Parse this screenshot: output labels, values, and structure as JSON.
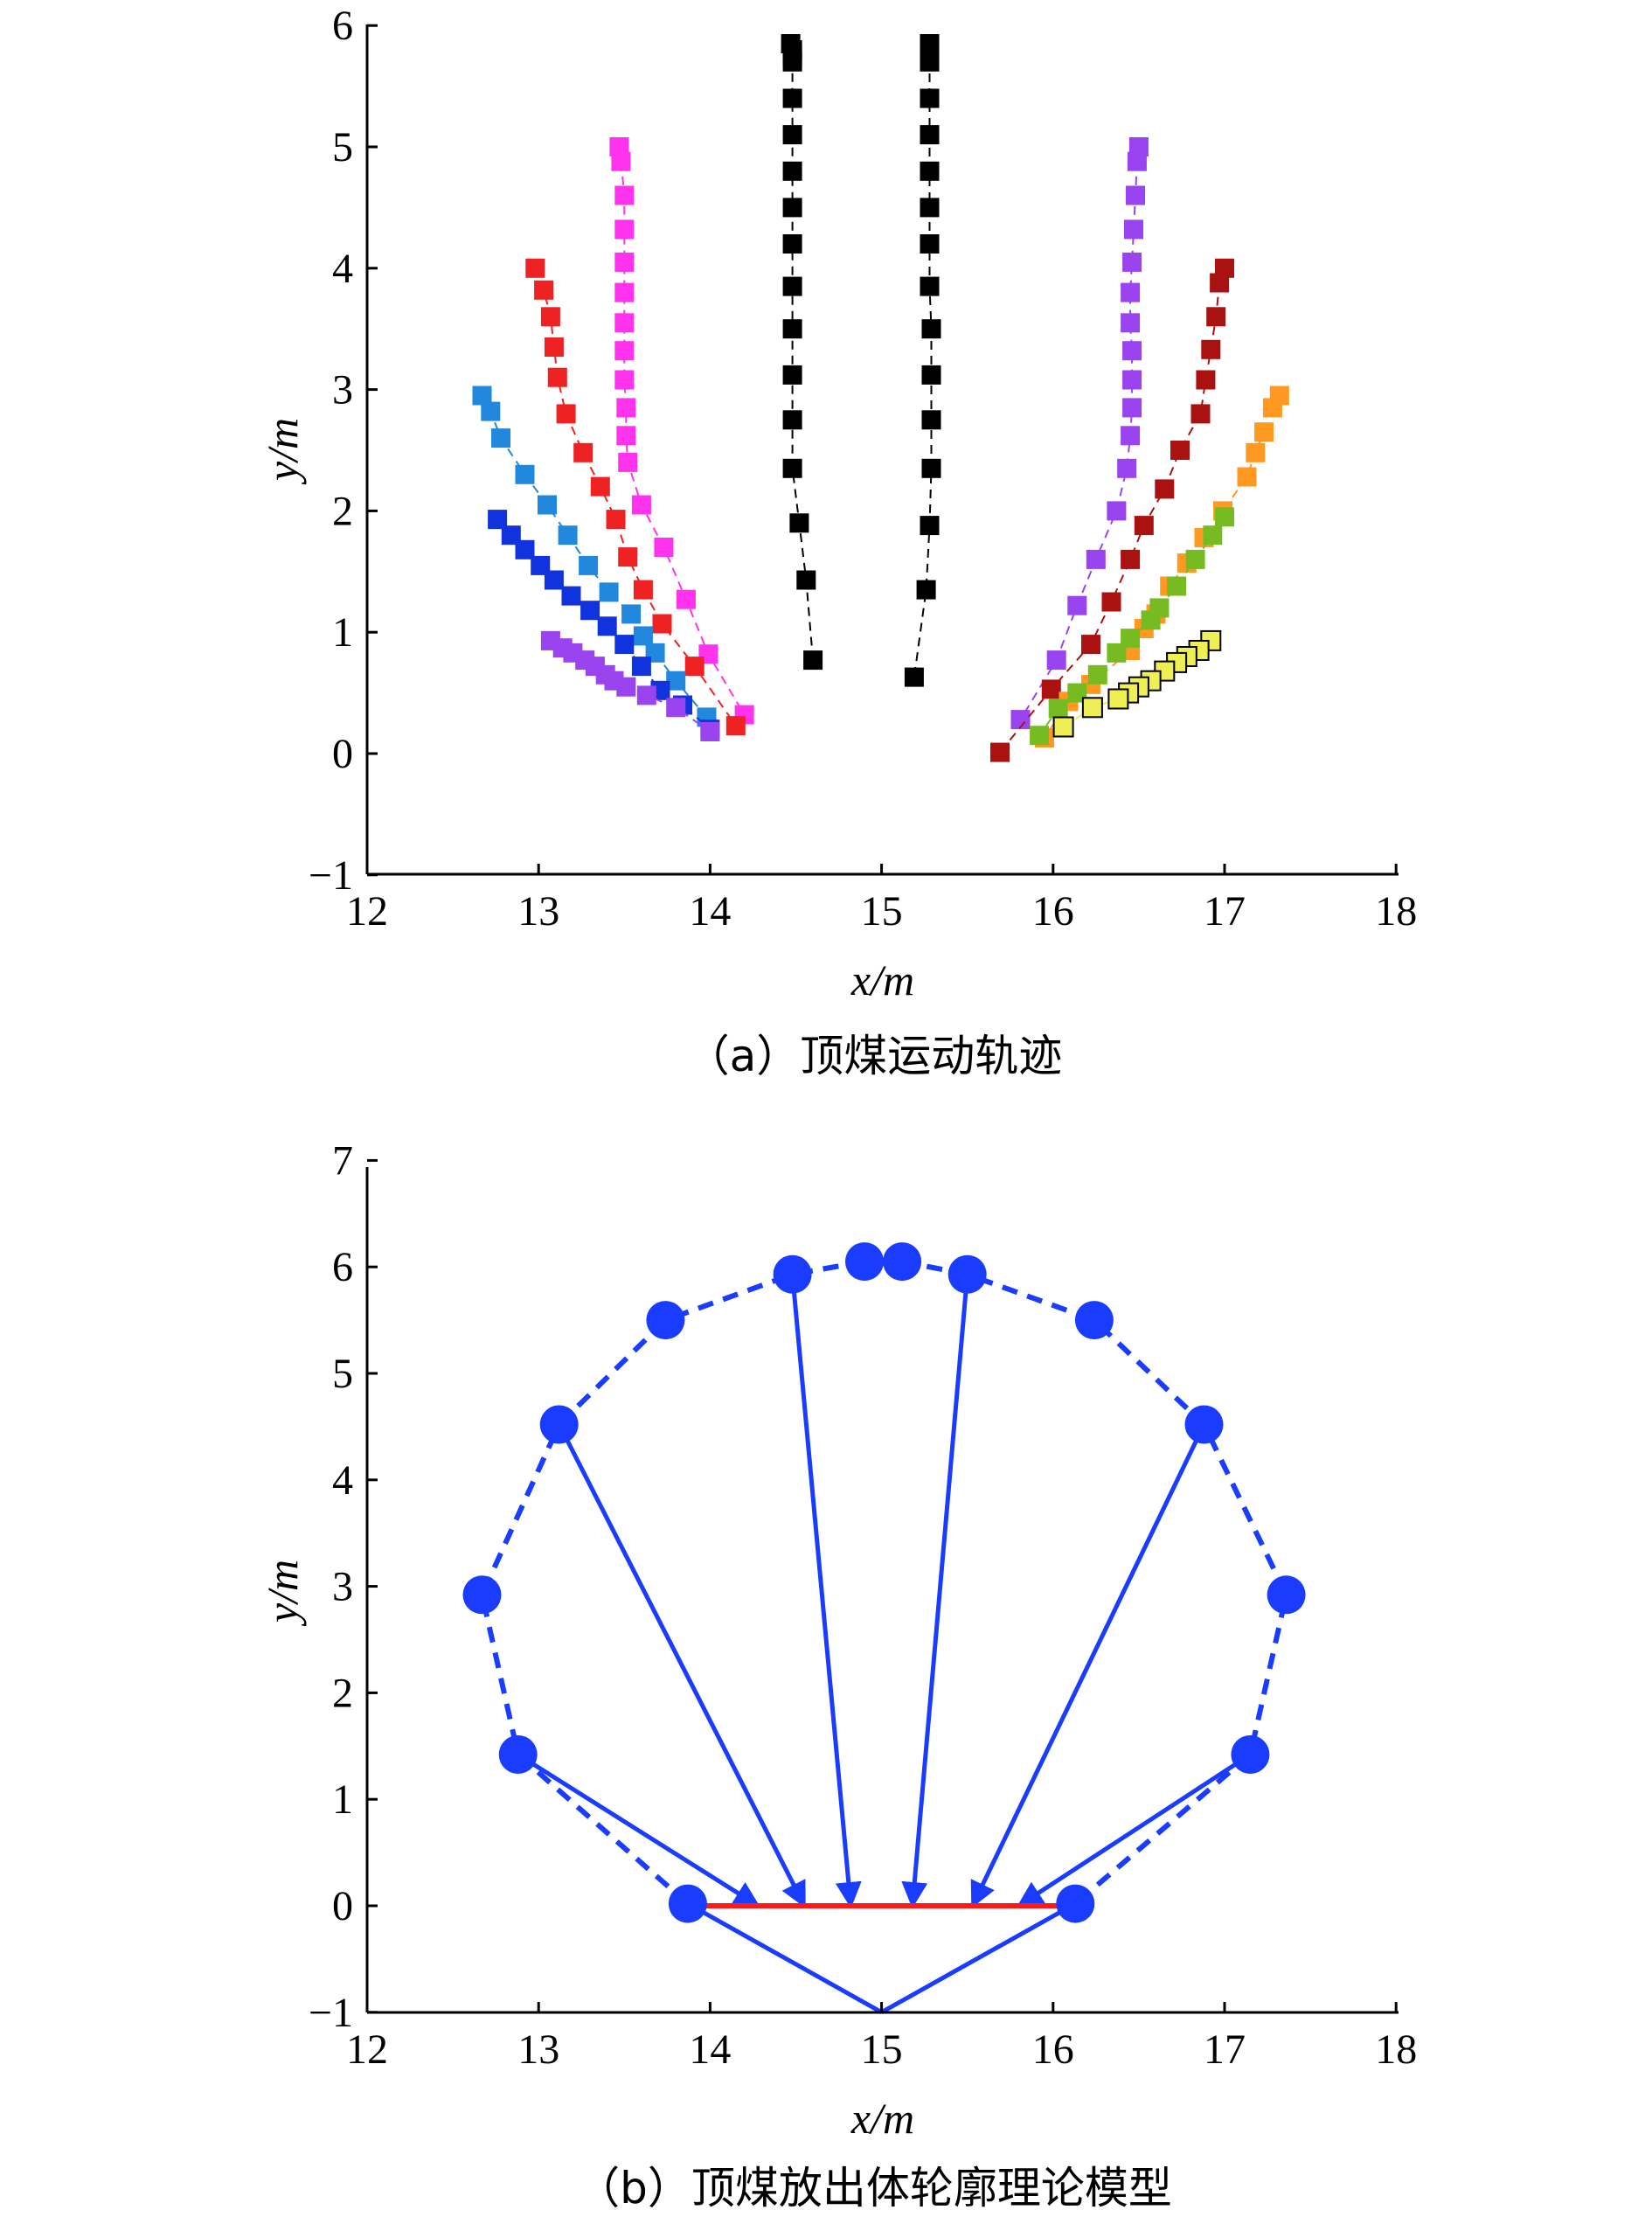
{
  "chart_data": [
    {
      "type": "scatter",
      "caption": "（a）顶煤运动轨迹",
      "xlabel": "x/m",
      "ylabel": "y/m",
      "xlim": [
        12,
        18
      ],
      "ylim": [
        -1,
        6
      ],
      "xticks": [
        "12",
        "13",
        "14",
        "15",
        "16",
        "17",
        "18"
      ],
      "yticks": [
        "−1",
        "0",
        "1",
        "2",
        "3",
        "4",
        "5",
        "6"
      ],
      "series": [
        {
          "color": "#000000",
          "line": [
            [
              14.15,
              0
            ],
            [
              14.0,
              0.2
            ]
          ],
          "points": [
            [
              14.47,
              5.85
            ],
            [
              14.48,
              5.8
            ],
            [
              14.48,
              5.75
            ],
            [
              14.48,
              5.7
            ],
            [
              14.48,
              5.4
            ],
            [
              14.48,
              5.1
            ],
            [
              14.48,
              4.8
            ],
            [
              14.48,
              4.5
            ],
            [
              14.48,
              4.2
            ],
            [
              14.48,
              3.85
            ],
            [
              14.48,
              3.5
            ],
            [
              14.48,
              3.12
            ],
            [
              14.48,
              2.75
            ],
            [
              14.48,
              2.35
            ],
            [
              14.52,
              1.9
            ],
            [
              14.56,
              1.43
            ],
            [
              14.6,
              0.77
            ]
          ]
        },
        {
          "color": "#000000",
          "points": [
            [
              15.28,
              5.85
            ],
            [
              15.28,
              5.8
            ],
            [
              15.28,
              5.75
            ],
            [
              15.28,
              5.7
            ],
            [
              15.28,
              5.4
            ],
            [
              15.28,
              5.1
            ],
            [
              15.28,
              4.8
            ],
            [
              15.28,
              4.5
            ],
            [
              15.28,
              4.2
            ],
            [
              15.28,
              3.85
            ],
            [
              15.29,
              3.5
            ],
            [
              15.29,
              3.12
            ],
            [
              15.29,
              2.75
            ],
            [
              15.29,
              2.35
            ],
            [
              15.28,
              1.88
            ],
            [
              15.26,
              1.35
            ],
            [
              15.19,
              0.63
            ]
          ]
        },
        {
          "color": "#ff33ee",
          "points": [
            [
              13.47,
              5.0
            ],
            [
              13.48,
              4.88
            ],
            [
              13.5,
              4.6
            ],
            [
              13.5,
              4.32
            ],
            [
              13.5,
              4.05
            ],
            [
              13.5,
              3.8
            ],
            [
              13.5,
              3.55
            ],
            [
              13.5,
              3.32
            ],
            [
              13.5,
              3.08
            ],
            [
              13.51,
              2.85
            ],
            [
              13.51,
              2.62
            ],
            [
              13.52,
              2.4
            ],
            [
              13.6,
              2.05
            ],
            [
              13.73,
              1.7
            ],
            [
              13.86,
              1.27
            ],
            [
              13.99,
              0.82
            ],
            [
              14.2,
              0.32
            ]
          ]
        },
        {
          "color": "#ee2222",
          "points": [
            [
              12.98,
              4.0
            ],
            [
              13.03,
              3.82
            ],
            [
              13.07,
              3.6
            ],
            [
              13.09,
              3.35
            ],
            [
              13.11,
              3.1
            ],
            [
              13.16,
              2.8
            ],
            [
              13.26,
              2.48
            ],
            [
              13.36,
              2.2
            ],
            [
              13.45,
              1.93
            ],
            [
              13.52,
              1.62
            ],
            [
              13.61,
              1.35
            ],
            [
              13.72,
              1.07
            ],
            [
              13.91,
              0.72
            ],
            [
              14.15,
              0.23
            ]
          ]
        },
        {
          "color": "#2288dd",
          "points": [
            [
              12.67,
              2.95
            ],
            [
              12.72,
              2.82
            ],
            [
              12.78,
              2.6
            ],
            [
              12.92,
              2.3
            ],
            [
              13.05,
              2.05
            ],
            [
              13.17,
              1.8
            ],
            [
              13.29,
              1.55
            ],
            [
              13.41,
              1.33
            ],
            [
              13.54,
              1.15
            ],
            [
              13.61,
              0.97
            ],
            [
              13.68,
              0.83
            ],
            [
              13.8,
              0.6
            ],
            [
              13.98,
              0.3
            ]
          ]
        },
        {
          "color": "#1133dd",
          "points": [
            [
              12.76,
              1.93
            ],
            [
              12.84,
              1.8
            ],
            [
              12.92,
              1.68
            ],
            [
              13.01,
              1.55
            ],
            [
              13.09,
              1.43
            ],
            [
              13.19,
              1.3
            ],
            [
              13.3,
              1.18
            ],
            [
              13.4,
              1.05
            ],
            [
              13.5,
              0.9
            ],
            [
              13.6,
              0.72
            ],
            [
              13.71,
              0.52
            ],
            [
              13.84,
              0.4
            ],
            [
              14.0,
              0.2
            ]
          ]
        },
        {
          "color": "#9944ee",
          "points": [
            [
              13.07,
              0.93
            ],
            [
              13.14,
              0.87
            ],
            [
              13.2,
              0.83
            ],
            [
              13.27,
              0.77
            ],
            [
              13.33,
              0.72
            ],
            [
              13.39,
              0.65
            ],
            [
              13.44,
              0.6
            ],
            [
              13.51,
              0.55
            ],
            [
              13.63,
              0.48
            ],
            [
              13.8,
              0.38
            ],
            [
              14.0,
              0.18
            ]
          ]
        },
        {
          "color": "#9944ee",
          "points": [
            [
              16.5,
              5.0
            ],
            [
              16.49,
              4.88
            ],
            [
              16.48,
              4.6
            ],
            [
              16.47,
              4.32
            ],
            [
              16.46,
              4.05
            ],
            [
              16.45,
              3.8
            ],
            [
              16.45,
              3.55
            ],
            [
              16.46,
              3.32
            ],
            [
              16.46,
              3.08
            ],
            [
              16.46,
              2.85
            ],
            [
              16.45,
              2.62
            ],
            [
              16.43,
              2.35
            ],
            [
              16.37,
              2.0
            ],
            [
              16.25,
              1.6
            ],
            [
              16.14,
              1.22
            ],
            [
              16.02,
              0.77
            ],
            [
              15.81,
              0.28
            ]
          ]
        },
        {
          "color": "#aa1111",
          "points": [
            [
              17.0,
              4.0
            ],
            [
              16.97,
              3.88
            ],
            [
              16.95,
              3.6
            ],
            [
              16.92,
              3.33
            ],
            [
              16.89,
              3.08
            ],
            [
              16.86,
              2.8
            ],
            [
              16.74,
              2.5
            ],
            [
              16.65,
              2.18
            ],
            [
              16.53,
              1.88
            ],
            [
              16.45,
              1.6
            ],
            [
              16.34,
              1.25
            ],
            [
              16.22,
              0.9
            ],
            [
              15.99,
              0.53
            ],
            [
              15.69,
              0.01
            ]
          ]
        },
        {
          "color": "#ff9922",
          "points": [
            [
              17.32,
              2.95
            ],
            [
              17.28,
              2.85
            ],
            [
              17.23,
              2.65
            ],
            [
              17.18,
              2.48
            ],
            [
              17.13,
              2.28
            ],
            [
              16.99,
              2.0
            ],
            [
              16.88,
              1.78
            ],
            [
              16.78,
              1.57
            ],
            [
              16.68,
              1.38
            ],
            [
              16.6,
              1.15
            ],
            [
              16.53,
              1.03
            ],
            [
              16.45,
              0.85
            ],
            [
              16.22,
              0.57
            ],
            [
              16.09,
              0.43
            ],
            [
              15.95,
              0.13
            ]
          ]
        },
        {
          "color": "#77bb22",
          "points": [
            [
              17.0,
              1.95
            ],
            [
              16.93,
              1.8
            ],
            [
              16.83,
              1.6
            ],
            [
              16.72,
              1.38
            ],
            [
              16.62,
              1.2
            ],
            [
              16.57,
              1.1
            ],
            [
              16.45,
              0.95
            ],
            [
              16.37,
              0.83
            ],
            [
              16.26,
              0.65
            ],
            [
              16.14,
              0.5
            ],
            [
              16.03,
              0.37
            ],
            [
              15.92,
              0.15
            ]
          ]
        },
        {
          "color": "#eeee55",
          "points": [
            [
              16.92,
              0.93
            ],
            [
              16.85,
              0.85
            ],
            [
              16.78,
              0.8
            ],
            [
              16.72,
              0.75
            ],
            [
              16.65,
              0.68
            ],
            [
              16.57,
              0.6
            ],
            [
              16.5,
              0.55
            ],
            [
              16.44,
              0.5
            ],
            [
              16.38,
              0.45
            ],
            [
              16.23,
              0.38
            ],
            [
              16.06,
              0.22
            ]
          ]
        }
      ]
    },
    {
      "type": "line",
      "caption": "（b）顶煤放出体轮廓理论模型",
      "xlabel": "x/m",
      "ylabel": "y/m",
      "xlim": [
        12,
        18
      ],
      "ylim": [
        -1,
        7
      ],
      "xticks": [
        "12",
        "13",
        "14",
        "15",
        "16",
        "17",
        "18"
      ],
      "yticks": [
        "−1",
        "0",
        "1",
        "2",
        "3",
        "4",
        "5",
        "6",
        "7"
      ],
      "contour_points": [
        [
          13.87,
          0.02
        ],
        [
          12.88,
          1.42
        ],
        [
          12.67,
          2.92
        ],
        [
          13.12,
          4.52
        ],
        [
          13.74,
          5.5
        ],
        [
          14.48,
          5.93
        ],
        [
          14.9,
          6.05
        ],
        [
          15.12,
          6.05
        ],
        [
          15.5,
          5.93
        ],
        [
          16.24,
          5.5
        ],
        [
          16.88,
          4.52
        ],
        [
          17.36,
          2.92
        ],
        [
          17.15,
          1.42
        ],
        [
          16.13,
          0.02
        ]
      ],
      "arrows": [
        [
          [
            12.88,
            1.42
          ],
          [
            14.28,
            0.0
          ]
        ],
        [
          [
            13.12,
            4.52
          ],
          [
            14.55,
            0.0
          ]
        ],
        [
          [
            14.48,
            5.93
          ],
          [
            14.82,
            0.0
          ]
        ],
        [
          [
            15.5,
            5.93
          ],
          [
            15.18,
            0.0
          ]
        ],
        [
          [
            16.88,
            4.52
          ],
          [
            15.53,
            0.0
          ]
        ],
        [
          [
            17.15,
            1.42
          ],
          [
            15.8,
            0.0
          ]
        ]
      ],
      "bottom_lines": [
        [
          [
            13.87,
            0.02
          ],
          [
            15.0,
            -1.0
          ]
        ],
        [
          [
            15.0,
            -1.0
          ],
          [
            16.13,
            0.02
          ]
        ]
      ],
      "red_segment": [
        [
          13.87,
          0.0
        ],
        [
          16.13,
          0.0
        ]
      ]
    }
  ]
}
